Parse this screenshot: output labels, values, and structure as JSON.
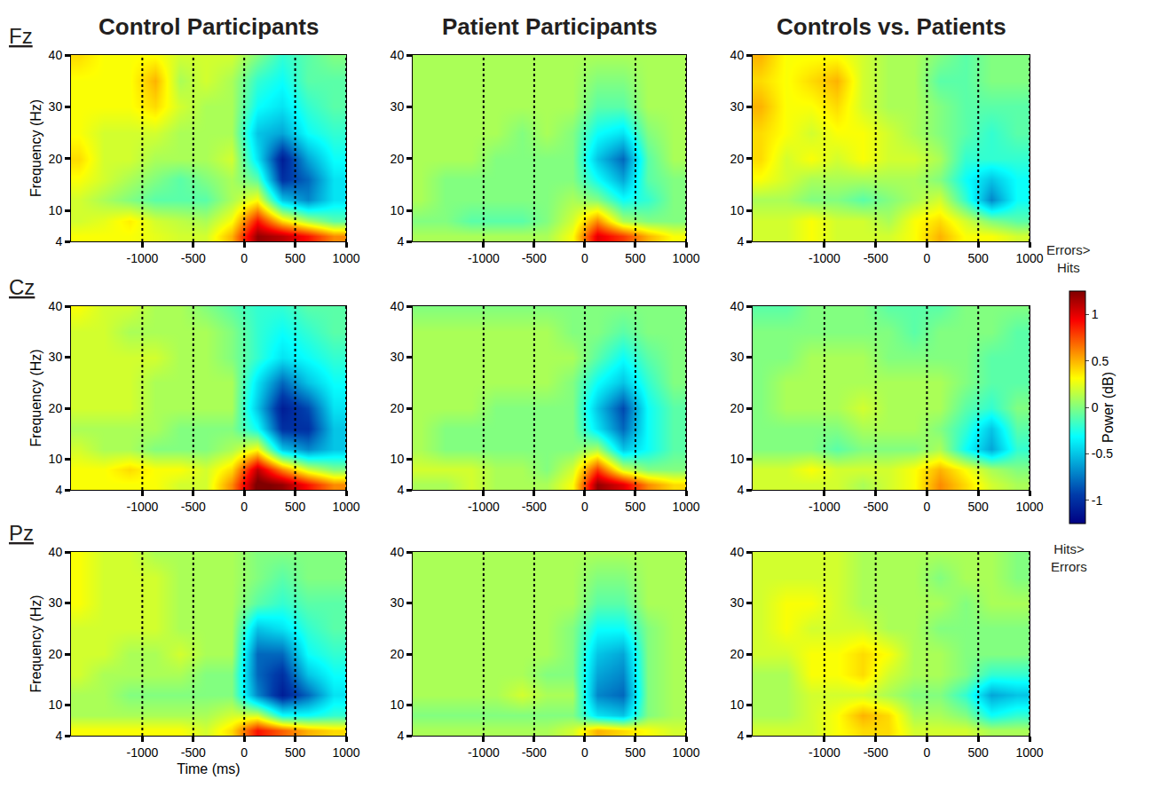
{
  "chart_data": {
    "type": "heatmap",
    "color": "Jet",
    "grid": true,
    "column_titles": [
      "Control Participants",
      "Patient Participants",
      "Controls vs. Patients"
    ],
    "row_labels": [
      "Fz",
      "Cz",
      "Pz"
    ],
    "xlabel": "Time (ms)",
    "ylabel": "Frequency (Hz)",
    "xlim": [
      -1700,
      1000
    ],
    "xticks": [
      -1000,
      -500,
      0,
      500,
      1000
    ],
    "ylim": [
      4,
      40
    ],
    "yticks": [
      4,
      10,
      20,
      30,
      40
    ],
    "zlim": [
      -1.25,
      1.25
    ],
    "zticks": [
      -1,
      -0.5,
      0,
      0.5,
      1
    ],
    "zlabel": "Power (dB)",
    "colorbar_top": [
      "Errors>",
      "Hits"
    ],
    "colorbar_bottom": [
      "Hits>",
      "Errors"
    ],
    "x": [
      -1625,
      -1375,
      -1125,
      -875,
      -625,
      -375,
      -125,
      125,
      375,
      625,
      875
    ],
    "y": [
      5,
      8,
      12,
      16,
      20,
      25,
      30,
      35,
      40
    ],
    "panels": [
      [
        [
          [
            0.3,
            0.3,
            0.3,
            0.25,
            0.2,
            0.2,
            0.5,
            1.2,
            1.1,
            0.9,
            0.6
          ],
          [
            0.2,
            0.25,
            0.35,
            0.2,
            0.15,
            0.1,
            0.3,
            0.9,
            0.4,
            0.1,
            -0.1
          ],
          [
            0.2,
            0.1,
            0.0,
            -0.1,
            -0.1,
            -0.1,
            0.1,
            0.3,
            -0.5,
            -0.7,
            -0.4
          ],
          [
            0.3,
            0.2,
            0.1,
            0.0,
            -0.1,
            0.0,
            0.1,
            -0.1,
            -1.0,
            -0.8,
            -0.4
          ],
          [
            0.4,
            0.2,
            0.2,
            0.1,
            0.1,
            0.1,
            0.2,
            -0.4,
            -1.1,
            -0.6,
            -0.3
          ],
          [
            0.3,
            0.2,
            0.2,
            0.2,
            0.1,
            0.1,
            0.1,
            -0.5,
            -0.6,
            -0.3,
            -0.2
          ],
          [
            0.3,
            0.3,
            0.3,
            0.4,
            0.2,
            0.1,
            0.1,
            -0.3,
            -0.4,
            -0.2,
            -0.1
          ],
          [
            0.3,
            0.3,
            0.3,
            0.5,
            0.1,
            0.2,
            0.1,
            -0.2,
            -0.3,
            -0.1,
            -0.1
          ],
          [
            0.4,
            0.3,
            0.3,
            0.3,
            0.2,
            0.2,
            0.2,
            0.0,
            -0.2,
            -0.1,
            0.0
          ]
        ],
        [
          [
            0.1,
            0.1,
            0.1,
            0.1,
            0.1,
            0.1,
            0.3,
            1.0,
            0.8,
            0.5,
            0.3
          ],
          [
            0.0,
            0.0,
            -0.1,
            -0.1,
            -0.1,
            0.0,
            0.2,
            0.6,
            0.1,
            0.0,
            0.0
          ],
          [
            0.1,
            0.0,
            0.0,
            0.0,
            0.0,
            0.0,
            0.1,
            0.0,
            -0.3,
            -0.2,
            0.0
          ],
          [
            0.1,
            0.0,
            0.0,
            0.0,
            0.0,
            0.0,
            0.0,
            -0.3,
            -0.6,
            -0.1,
            0.0
          ],
          [
            0.1,
            0.1,
            0.1,
            0.0,
            0.0,
            0.0,
            0.0,
            -0.5,
            -0.8,
            -0.1,
            0.1
          ],
          [
            0.1,
            0.1,
            0.1,
            0.1,
            0.0,
            0.1,
            0.0,
            -0.3,
            -0.4,
            0.0,
            0.1
          ],
          [
            0.1,
            0.1,
            0.1,
            0.1,
            0.1,
            0.1,
            0.1,
            -0.1,
            -0.1,
            0.1,
            0.1
          ],
          [
            0.1,
            0.1,
            0.1,
            0.1,
            0.1,
            0.1,
            0.1,
            0.0,
            0.0,
            0.1,
            0.1
          ],
          [
            0.1,
            0.1,
            0.1,
            0.1,
            0.1,
            0.1,
            0.1,
            0.1,
            0.1,
            0.1,
            0.1
          ]
        ],
        [
          [
            0.2,
            0.2,
            0.3,
            0.2,
            0.2,
            0.2,
            0.3,
            0.5,
            0.3,
            0.3,
            0.2
          ],
          [
            0.2,
            0.2,
            0.3,
            0.2,
            0.2,
            0.1,
            0.3,
            0.4,
            0.2,
            0.0,
            -0.1
          ],
          [
            0.1,
            0.1,
            0.0,
            0.0,
            -0.1,
            0.0,
            0.1,
            0.2,
            -0.2,
            -0.7,
            -0.3
          ],
          [
            0.3,
            0.2,
            0.1,
            0.1,
            0.1,
            0.1,
            0.1,
            0.0,
            -0.3,
            -0.5,
            -0.3
          ],
          [
            0.4,
            0.2,
            0.3,
            0.2,
            0.3,
            0.2,
            0.2,
            0.1,
            -0.2,
            -0.2,
            -0.2
          ],
          [
            0.4,
            0.3,
            0.2,
            0.3,
            0.3,
            0.2,
            0.1,
            0.0,
            -0.1,
            -0.2,
            -0.1
          ],
          [
            0.5,
            0.3,
            0.3,
            0.4,
            0.2,
            0.1,
            0.1,
            0.0,
            -0.1,
            -0.1,
            -0.1
          ],
          [
            0.4,
            0.3,
            0.4,
            0.5,
            0.2,
            0.1,
            0.1,
            -0.1,
            -0.1,
            0.0,
            0.0
          ],
          [
            0.5,
            0.3,
            0.3,
            0.3,
            0.2,
            0.1,
            0.1,
            0.0,
            -0.1,
            0.0,
            0.0
          ]
        ]
      ],
      [
        [
          [
            0.3,
            0.3,
            0.3,
            0.3,
            0.2,
            0.2,
            0.6,
            1.3,
            1.2,
            0.9,
            0.6
          ],
          [
            0.3,
            0.3,
            0.4,
            0.3,
            0.3,
            0.2,
            0.4,
            1.1,
            0.6,
            0.2,
            0.0
          ],
          [
            0.2,
            0.1,
            0.1,
            0.0,
            0.0,
            0.0,
            0.1,
            0.3,
            -0.5,
            -0.7,
            -0.5
          ],
          [
            0.1,
            0.1,
            0.1,
            0.1,
            0.0,
            0.0,
            0.0,
            -0.3,
            -1.0,
            -1.0,
            -0.5
          ],
          [
            0.2,
            0.2,
            0.2,
            0.1,
            0.1,
            0.1,
            0.1,
            -0.5,
            -1.1,
            -0.9,
            -0.4
          ],
          [
            0.2,
            0.2,
            0.2,
            0.1,
            0.1,
            0.1,
            0.1,
            -0.4,
            -0.8,
            -0.5,
            -0.3
          ],
          [
            0.2,
            0.2,
            0.2,
            0.2,
            0.1,
            0.1,
            0.0,
            -0.2,
            -0.4,
            -0.3,
            -0.2
          ],
          [
            0.2,
            0.2,
            0.1,
            0.1,
            0.1,
            0.1,
            0.0,
            -0.2,
            -0.3,
            -0.2,
            -0.1
          ],
          [
            0.3,
            0.2,
            0.2,
            0.1,
            0.1,
            0.0,
            -0.1,
            -0.2,
            -0.2,
            -0.1,
            -0.1
          ]
        ],
        [
          [
            0.1,
            0.1,
            0.2,
            0.1,
            0.1,
            0.1,
            0.3,
            1.2,
            1.0,
            0.6,
            0.4
          ],
          [
            0.2,
            0.2,
            0.2,
            0.1,
            0.1,
            0.0,
            0.2,
            0.8,
            0.2,
            0.0,
            0.0
          ],
          [
            0.1,
            0.0,
            0.0,
            0.0,
            0.0,
            0.0,
            0.0,
            0.1,
            -0.5,
            -0.3,
            -0.1
          ],
          [
            0.1,
            0.0,
            0.0,
            0.0,
            0.0,
            0.0,
            0.0,
            -0.4,
            -0.8,
            -0.3,
            -0.1
          ],
          [
            0.1,
            0.1,
            0.1,
            0.0,
            0.0,
            0.0,
            0.0,
            -0.5,
            -0.9,
            -0.3,
            -0.1
          ],
          [
            0.1,
            0.1,
            0.1,
            0.1,
            0.1,
            0.1,
            0.0,
            -0.3,
            -0.5,
            -0.2,
            0.0
          ],
          [
            0.1,
            0.1,
            0.1,
            0.1,
            0.1,
            0.1,
            0.1,
            -0.1,
            -0.3,
            -0.1,
            0.0
          ],
          [
            0.1,
            0.1,
            0.1,
            0.1,
            0.1,
            0.1,
            0.0,
            0.0,
            -0.1,
            0.0,
            0.0
          ],
          [
            0.0,
            0.0,
            0.0,
            0.0,
            0.0,
            0.0,
            0.0,
            0.0,
            0.0,
            0.0,
            0.0
          ]
        ],
        [
          [
            0.2,
            0.2,
            0.2,
            0.2,
            0.1,
            0.2,
            0.3,
            0.6,
            0.4,
            0.2,
            0.1
          ],
          [
            0.2,
            0.2,
            0.3,
            0.2,
            0.2,
            0.2,
            0.3,
            0.5,
            0.3,
            0.1,
            0.0
          ],
          [
            0.0,
            0.0,
            0.0,
            -0.1,
            0.0,
            0.0,
            0.0,
            0.1,
            -0.3,
            -0.6,
            -0.2
          ],
          [
            0.0,
            0.0,
            0.0,
            0.0,
            0.1,
            0.1,
            0.1,
            0.0,
            -0.2,
            -0.5,
            -0.1
          ],
          [
            0.0,
            0.1,
            0.1,
            0.1,
            0.2,
            0.1,
            0.1,
            0.1,
            -0.1,
            -0.2,
            0.0
          ],
          [
            0.0,
            0.1,
            0.1,
            0.1,
            0.1,
            0.1,
            0.1,
            0.1,
            0.0,
            -0.1,
            -0.1
          ],
          [
            0.0,
            0.0,
            0.1,
            0.1,
            0.1,
            0.0,
            0.0,
            0.0,
            0.0,
            -0.1,
            -0.1
          ],
          [
            0.0,
            0.0,
            0.0,
            0.0,
            0.0,
            0.0,
            -0.1,
            0.0,
            0.0,
            0.0,
            -0.1
          ],
          [
            -0.1,
            -0.1,
            0.0,
            0.0,
            0.0,
            -0.1,
            -0.1,
            -0.1,
            0.0,
            0.0,
            0.0
          ]
        ]
      ],
      [
        [
          [
            0.3,
            0.3,
            0.3,
            0.3,
            0.3,
            0.2,
            0.4,
            0.9,
            0.7,
            0.5,
            0.4
          ],
          [
            0.1,
            0.1,
            0.1,
            0.1,
            0.1,
            0.1,
            0.2,
            0.2,
            -0.3,
            -0.3,
            -0.2
          ],
          [
            0.1,
            0.1,
            0.0,
            0.0,
            0.0,
            0.0,
            0.0,
            -0.7,
            -1.1,
            -0.8,
            -0.4
          ],
          [
            0.2,
            0.1,
            0.1,
            0.1,
            0.1,
            0.0,
            0.0,
            -0.8,
            -1.0,
            -0.5,
            -0.3
          ],
          [
            0.2,
            0.2,
            0.1,
            0.1,
            0.2,
            0.1,
            0.1,
            -0.8,
            -0.8,
            -0.3,
            -0.2
          ],
          [
            0.2,
            0.2,
            0.2,
            0.2,
            0.1,
            0.1,
            0.1,
            -0.5,
            -0.4,
            -0.2,
            -0.1
          ],
          [
            0.3,
            0.2,
            0.2,
            0.2,
            0.1,
            0.1,
            0.1,
            -0.1,
            -0.2,
            -0.1,
            -0.1
          ],
          [
            0.3,
            0.2,
            0.2,
            0.2,
            0.1,
            0.1,
            0.1,
            0.0,
            -0.1,
            0.0,
            0.0
          ],
          [
            0.3,
            0.2,
            0.2,
            0.1,
            0.1,
            0.1,
            0.1,
            0.0,
            0.0,
            0.0,
            0.0
          ]
        ],
        [
          [
            0.1,
            0.1,
            0.1,
            0.1,
            0.1,
            0.1,
            0.2,
            0.5,
            0.4,
            0.3,
            0.2
          ],
          [
            0.0,
            0.0,
            0.0,
            0.0,
            0.0,
            0.0,
            0.0,
            -0.4,
            -0.5,
            0.0,
            0.1
          ],
          [
            0.1,
            0.1,
            0.1,
            0.1,
            0.2,
            0.1,
            0.1,
            -0.7,
            -0.8,
            0.0,
            0.1
          ],
          [
            0.1,
            0.1,
            0.1,
            0.1,
            0.1,
            0.0,
            0.0,
            -0.6,
            -0.7,
            0.0,
            0.1
          ],
          [
            0.1,
            0.1,
            0.1,
            0.1,
            0.1,
            0.1,
            0.0,
            -0.5,
            -0.6,
            0.0,
            0.1
          ],
          [
            0.1,
            0.1,
            0.1,
            0.1,
            0.1,
            0.1,
            0.0,
            -0.3,
            -0.3,
            0.0,
            0.1
          ],
          [
            0.1,
            0.1,
            0.1,
            0.1,
            0.1,
            0.1,
            0.1,
            -0.1,
            -0.1,
            0.1,
            0.1
          ],
          [
            0.1,
            0.1,
            0.1,
            0.1,
            0.1,
            0.1,
            0.1,
            0.0,
            0.0,
            0.1,
            0.1
          ],
          [
            0.1,
            0.1,
            0.1,
            0.1,
            0.1,
            0.1,
            0.1,
            0.1,
            0.1,
            0.1,
            0.1
          ]
        ],
        [
          [
            0.2,
            0.2,
            0.2,
            0.3,
            0.4,
            0.4,
            0.2,
            0.2,
            0.2,
            0.1,
            0.1
          ],
          [
            0.1,
            0.1,
            0.2,
            0.3,
            0.5,
            0.4,
            0.1,
            0.1,
            0.0,
            -0.3,
            -0.2
          ],
          [
            0.1,
            0.1,
            0.2,
            0.2,
            0.2,
            0.1,
            0.0,
            0.0,
            -0.2,
            -0.6,
            -0.5
          ],
          [
            0.1,
            0.1,
            0.3,
            0.3,
            0.4,
            0.2,
            0.1,
            0.1,
            0.0,
            -0.2,
            -0.2
          ],
          [
            0.2,
            0.2,
            0.3,
            0.3,
            0.4,
            0.3,
            0.1,
            0.1,
            0.0,
            0.0,
            0.0
          ],
          [
            0.2,
            0.3,
            0.2,
            0.2,
            0.2,
            0.1,
            0.1,
            0.0,
            0.0,
            0.0,
            0.0
          ],
          [
            0.2,
            0.3,
            0.3,
            0.2,
            0.1,
            0.1,
            0.1,
            0.1,
            0.0,
            0.1,
            0.1
          ],
          [
            0.2,
            0.2,
            0.2,
            0.2,
            0.1,
            0.1,
            0.1,
            0.0,
            0.1,
            0.1,
            0.0
          ],
          [
            0.2,
            0.2,
            0.2,
            0.2,
            0.1,
            0.1,
            0.1,
            0.1,
            0.1,
            0.1,
            0.0
          ]
        ]
      ]
    ]
  }
}
